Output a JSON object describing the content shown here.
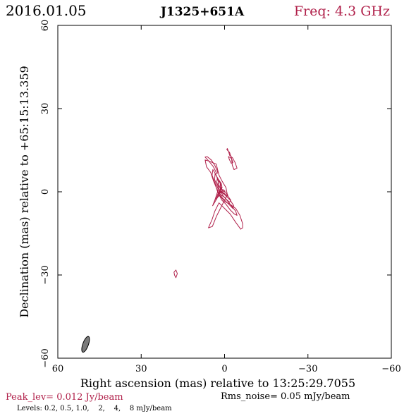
{
  "header": {
    "date": "2016.01.05",
    "source": "J1325+651A",
    "freq": "Freq: 4.3 GHz"
  },
  "footer": {
    "peak": "Peak_lev=  0.012 Jy/beam",
    "rms": "Rms_noise= 0.05 mJy/beam",
    "levels": "Levels: 0.2, 0.5, 1.0,    2,    4,    8 mJy/beam"
  },
  "colors": {
    "contour": "#b0204a",
    "freq_text": "#b0204a",
    "peak_text": "#b0204a",
    "beam_fill": "#7a7a7a",
    "axis": "#000000"
  },
  "chart_data": {
    "type": "contour",
    "xlabel": "Right ascension (mas) relative to 13:25:29.7055",
    "ylabel": "Declination (mas) relative to +65:15:13.359",
    "xlim": [
      60,
      -60
    ],
    "ylim": [
      -60,
      60
    ],
    "xticks": [
      60,
      30,
      0,
      -30,
      -60
    ],
    "yticks": [
      -60,
      -30,
      0,
      30,
      60
    ],
    "xtick_labels": [
      "60",
      "30",
      "0",
      "−30",
      "−60"
    ],
    "ytick_labels": [
      "−60",
      "−30",
      "0",
      "30",
      "60"
    ],
    "contour_levels_mJy": [
      0.2,
      0.5,
      1.0,
      2,
      4,
      8
    ],
    "contours": [
      {
        "level": 0.2,
        "points": [
          [
            5.8,
            -13
          ],
          [
            4.4,
            -12.5
          ],
          [
            3,
            -9
          ],
          [
            1.5,
            -6
          ],
          [
            0,
            -3
          ],
          [
            -1,
            -1
          ],
          [
            -0.5,
            1.5
          ],
          [
            1,
            4
          ],
          [
            2,
            6
          ],
          [
            2.5,
            8
          ],
          [
            3,
            10
          ],
          [
            5.5,
            11
          ],
          [
            7,
            11.5
          ],
          [
            6.5,
            9
          ],
          [
            5,
            7
          ],
          [
            4,
            4
          ],
          [
            3,
            1.5
          ],
          [
            2,
            -1
          ],
          [
            0,
            -3.5
          ],
          [
            -2,
            -4.5
          ],
          [
            -4,
            -6
          ],
          [
            -5.5,
            -8.5
          ],
          [
            -6.5,
            -11.5
          ],
          [
            -6.5,
            -13
          ],
          [
            -5.8,
            -13.5
          ],
          [
            -4,
            -11
          ],
          [
            -2,
            -8
          ],
          [
            0,
            -6
          ],
          [
            2,
            -4
          ],
          [
            3.5,
            -7
          ],
          [
            4.5,
            -10
          ],
          [
            5.8,
            -13
          ]
        ]
      },
      {
        "level": 0.5,
        "points": [
          [
            4.3,
            -5
          ],
          [
            3.5,
            -3
          ],
          [
            2.5,
            0
          ],
          [
            2,
            3
          ],
          [
            3,
            6
          ],
          [
            4.2,
            8
          ],
          [
            4.5,
            6
          ],
          [
            3.4,
            3
          ],
          [
            2.5,
            0
          ],
          [
            1,
            -3
          ],
          [
            -0.5,
            -4.5
          ],
          [
            -2,
            -6.5
          ],
          [
            -3.5,
            -8
          ],
          [
            -4.5,
            -8.5
          ],
          [
            -4,
            -7
          ],
          [
            -2,
            -4.5
          ],
          [
            0,
            -2
          ],
          [
            1.5,
            -1
          ],
          [
            2.5,
            -2
          ],
          [
            4.3,
            -5
          ]
        ]
      },
      {
        "level": 1.0,
        "points": [
          [
            3.2,
            -3
          ],
          [
            2.5,
            -1
          ],
          [
            1.5,
            1
          ],
          [
            1.5,
            3
          ],
          [
            2.5,
            5
          ],
          [
            3.4,
            6.5
          ],
          [
            3.6,
            4.5
          ],
          [
            2.7,
            2
          ],
          [
            2,
            0
          ],
          [
            1,
            -2
          ],
          [
            -0.5,
            -3.5
          ],
          [
            -2,
            -5
          ],
          [
            -3,
            -6
          ],
          [
            -3.3,
            -5
          ],
          [
            -2,
            -3
          ],
          [
            0,
            -1
          ],
          [
            1.5,
            0
          ],
          [
            3.2,
            -3
          ]
        ]
      },
      {
        "level": 2.0,
        "points": [
          [
            2.4,
            -1.5
          ],
          [
            1.8,
            0
          ],
          [
            1,
            1.5
          ],
          [
            1.2,
            3
          ],
          [
            2,
            4.2
          ],
          [
            2.6,
            5
          ],
          [
            2.8,
            3.5
          ],
          [
            2.2,
            1.5
          ],
          [
            1.4,
            0
          ],
          [
            0.5,
            -1.5
          ],
          [
            -0.7,
            -2.8
          ],
          [
            -1.8,
            -3.8
          ],
          [
            -2.2,
            -3
          ],
          [
            -1.2,
            -1.5
          ],
          [
            0.2,
            -0.5
          ],
          [
            1.2,
            0
          ],
          [
            2.4,
            -1.5
          ]
        ]
      },
      {
        "level": 4.0,
        "points": [
          [
            1.7,
            0
          ],
          [
            1.2,
            1.2
          ],
          [
            1,
            2.2
          ],
          [
            1.5,
            3.2
          ],
          [
            2,
            3.8
          ],
          [
            2.2,
            2.8
          ],
          [
            1.7,
            1.5
          ],
          [
            1,
            0.2
          ],
          [
            0.2,
            -0.8
          ],
          [
            -0.8,
            -1.8
          ],
          [
            -1.2,
            -1.2
          ],
          [
            -0.4,
            -0.3
          ],
          [
            0.6,
            0.3
          ],
          [
            1.7,
            0
          ]
        ]
      },
      {
        "level": 8.0,
        "points": [
          [
            1.1,
            0.9
          ],
          [
            0.9,
            1.6
          ],
          [
            1.1,
            2.3
          ],
          [
            1.5,
            2.7
          ],
          [
            1.6,
            2
          ],
          [
            1.3,
            1.3
          ],
          [
            0.8,
            0.6
          ],
          [
            0.2,
            0.1
          ],
          [
            -0.2,
            0.2
          ],
          [
            0.4,
            0.7
          ],
          [
            1.1,
            0.9
          ]
        ]
      },
      {
        "level": 0.2,
        "points": [
          [
            -0.8,
            15.2
          ],
          [
            -1.8,
            14.2
          ],
          [
            -2.5,
            12
          ],
          [
            -2.8,
            9.5
          ],
          [
            -3.4,
            8
          ],
          [
            -4.5,
            8.5
          ],
          [
            -3.8,
            10.5
          ],
          [
            -2.9,
            12.2
          ],
          [
            -1.8,
            13.2
          ],
          [
            -1.6,
            14
          ],
          [
            -1,
            15.6
          ],
          [
            -0.8,
            15.2
          ]
        ]
      },
      {
        "level": 0.5,
        "points": [
          [
            -1.4,
            12.7
          ],
          [
            -2.5,
            12
          ],
          [
            -3,
            10.5
          ],
          [
            -2.4,
            10.3
          ],
          [
            -1.7,
            11.7
          ],
          [
            -1.4,
            12.7
          ]
        ]
      },
      {
        "level": 0.2,
        "points": [
          [
            7,
            12.5
          ],
          [
            5.6,
            11
          ],
          [
            4,
            9
          ],
          [
            2.8,
            6.5
          ],
          [
            2.4,
            7
          ],
          [
            3.5,
            9.5
          ],
          [
            4.8,
            11.5
          ],
          [
            6.2,
            12.6
          ],
          [
            7,
            12.5
          ]
        ]
      },
      {
        "level": 0.2,
        "points": [
          [
            18,
            -30
          ],
          [
            17.5,
            -31
          ],
          [
            17,
            -29.5
          ],
          [
            17.5,
            -28.2
          ],
          [
            18.2,
            -29
          ],
          [
            18,
            -30
          ]
        ]
      }
    ],
    "beam": {
      "x": 50,
      "y": -55,
      "major_mas": 6,
      "minor_mas": 2,
      "pa_deg": 160
    }
  }
}
